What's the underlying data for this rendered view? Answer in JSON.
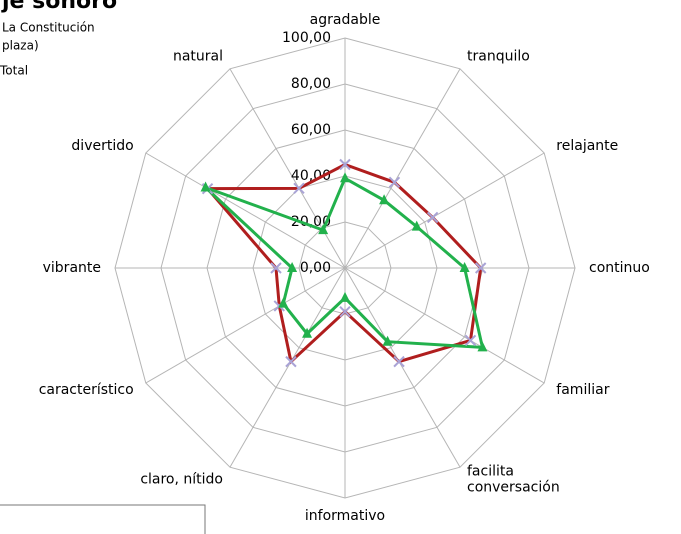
{
  "chart_data": {
    "type": "radar",
    "title": "je sonoro",
    "subtitle": [
      "La Constitución",
      "plaza)"
    ],
    "legend_label": "Total",
    "categories": [
      "agradable",
      "tranquilo",
      "relajante",
      "continuo",
      "familiar",
      "facilita\nconversación",
      "informativo",
      "claro, nítido",
      "característico",
      "vibrante",
      "divertido",
      "natural"
    ],
    "series": [
      {
        "name": "red",
        "color": "#b01e1e",
        "marker": "x",
        "marker_color": "#a9a3d6",
        "values": [
          45,
          43,
          44,
          59,
          63,
          47,
          19,
          47,
          33,
          30,
          69,
          40
        ]
      },
      {
        "name": "green",
        "color": "#22b14c",
        "marker": "triangle",
        "values": [
          39,
          34,
          36,
          52,
          69,
          37,
          13,
          33,
          31,
          23,
          70,
          19
        ]
      }
    ],
    "rlim": [
      0,
      100
    ],
    "rticks": [
      {
        "value": 0,
        "label": "0,00"
      },
      {
        "value": 20,
        "label": "20,00"
      },
      {
        "value": 40,
        "label": "40,00"
      },
      {
        "value": 60,
        "label": "60,00"
      },
      {
        "value": 80,
        "label": "80,00"
      },
      {
        "value": 100,
        "label": "100,00"
      }
    ],
    "grid": true
  }
}
